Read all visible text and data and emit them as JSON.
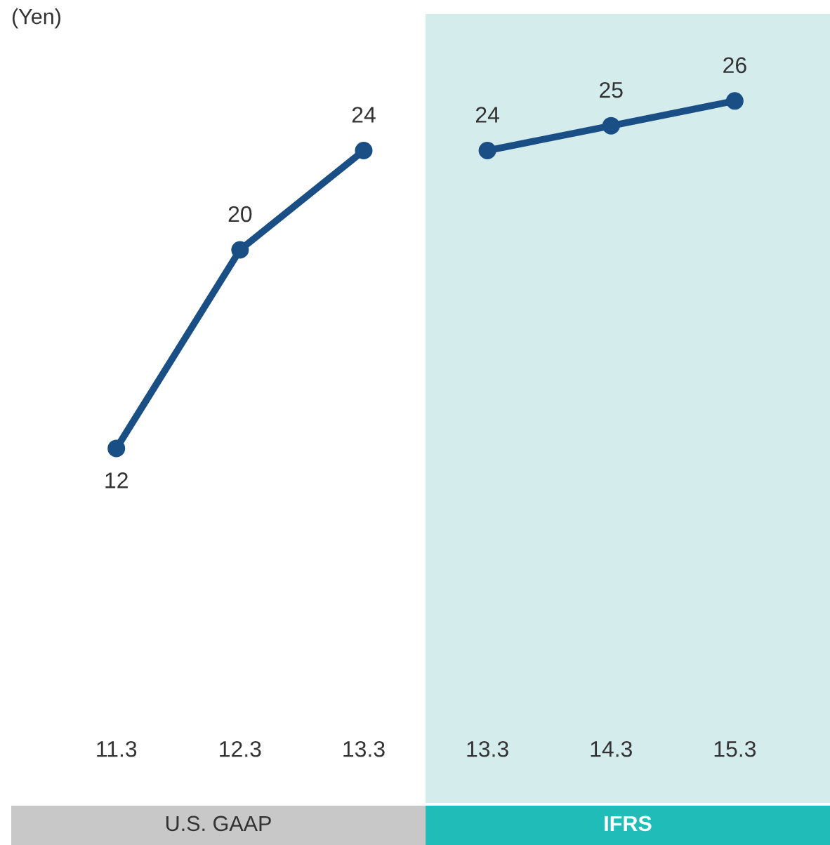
{
  "chart_data": {
    "type": "line",
    "ylabel": "(Yen)",
    "categories": [
      "11.3",
      "12.3",
      "13.3",
      "13.3",
      "14.3",
      "15.3"
    ],
    "series": [
      {
        "color": "#1a4f85",
        "values": [
          12,
          20,
          24,
          null,
          null,
          null
        ]
      },
      {
        "color": "#1a4f85",
        "values": [
          null,
          null,
          null,
          24,
          25,
          26
        ]
      }
    ],
    "bands": [
      {
        "axis": "x",
        "from": "13.3",
        "to": "15.3",
        "label": "IFRS",
        "color": "#d5eced"
      }
    ],
    "annotations": [
      "U.S. GAAP"
    ],
    "marker": "circle",
    "line_style": "solid",
    "data_labels": true
  }
}
